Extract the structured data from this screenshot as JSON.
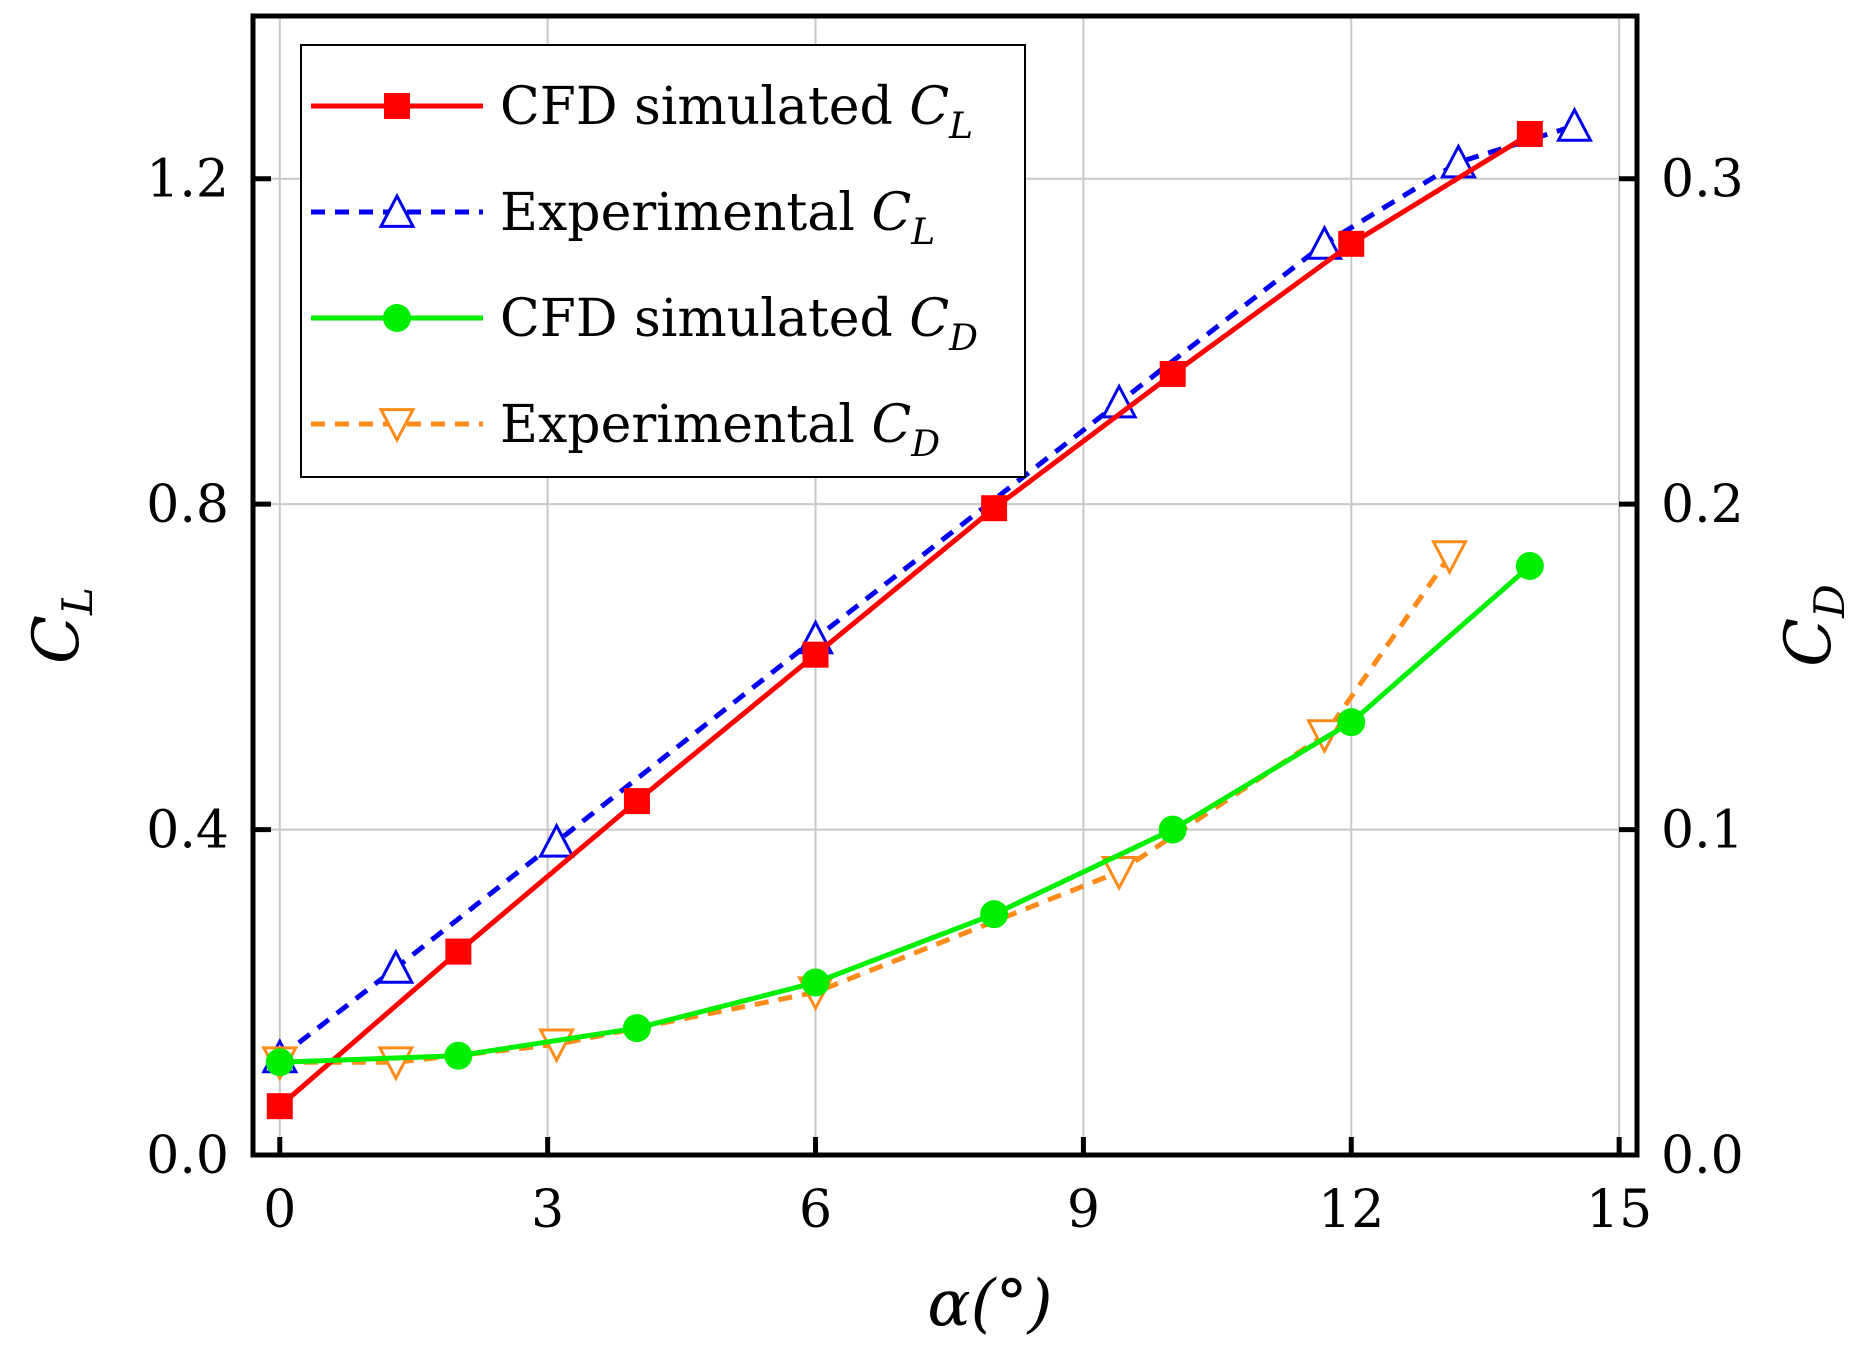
{
  "chart_data": {
    "type": "line",
    "x_label": "α(°)",
    "y_label": {
      "main": "C",
      "sub": "L"
    },
    "y2_label": {
      "main": "C",
      "sub": "D"
    },
    "x_ticks": [
      "0",
      "3",
      "6",
      "9",
      "12",
      "15"
    ],
    "y_ticks": [
      "0.0",
      "0.4",
      "0.8",
      "1.2"
    ],
    "y2_ticks": [
      "0.0",
      "0.1",
      "0.2",
      "0.3"
    ],
    "xlim": [
      -0.3,
      15.2
    ],
    "ylim": [
      0.0,
      1.4
    ],
    "y2lim": [
      0.0,
      0.35
    ],
    "grid": true,
    "legend_position": "top-left",
    "series": [
      {
        "name": "CFD simulated C_L",
        "legend": {
          "main": "CFD simulated C",
          "sub": "L"
        },
        "axis": "left",
        "color": "#ff0000",
        "line_style": "solid",
        "marker": "filled-square",
        "x": [
          0,
          2,
          4,
          6,
          8,
          10,
          12,
          14
        ],
        "y": [
          0.06,
          0.25,
          0.435,
          0.615,
          0.795,
          0.96,
          1.12,
          1.255
        ]
      },
      {
        "name": "Experimental C_L",
        "legend": {
          "main": "Experimental C",
          "sub": "L"
        },
        "axis": "left",
        "color": "#0000ee",
        "line_style": "dashed",
        "marker": "open-triangle-up",
        "x": [
          0,
          1.3,
          3.1,
          6.0,
          9.4,
          11.7,
          13.2,
          14.5
        ],
        "y": [
          0.12,
          0.23,
          0.385,
          0.635,
          0.925,
          1.12,
          1.22,
          1.265
        ]
      },
      {
        "name": "CFD simulated C_D",
        "legend": {
          "main": "CFD simulated C",
          "sub": "D"
        },
        "axis": "right",
        "color": "#00ee00",
        "line_style": "solid",
        "marker": "filled-circle",
        "x": [
          0,
          2,
          4,
          6,
          8,
          10,
          12,
          14
        ],
        "y": [
          0.0285,
          0.0305,
          0.039,
          0.053,
          0.074,
          0.1,
          0.133,
          0.181
        ]
      },
      {
        "name": "Experimental C_D",
        "legend": {
          "main": "Experimental C",
          "sub": "D"
        },
        "axis": "right",
        "color": "#ff8c1a",
        "line_style": "dashed",
        "marker": "open-triangle-down",
        "x": [
          0,
          1.3,
          3.1,
          6.0,
          9.4,
          11.7,
          13.1
        ],
        "y": [
          0.0285,
          0.0285,
          0.034,
          0.05,
          0.087,
          0.129,
          0.184
        ]
      }
    ]
  }
}
